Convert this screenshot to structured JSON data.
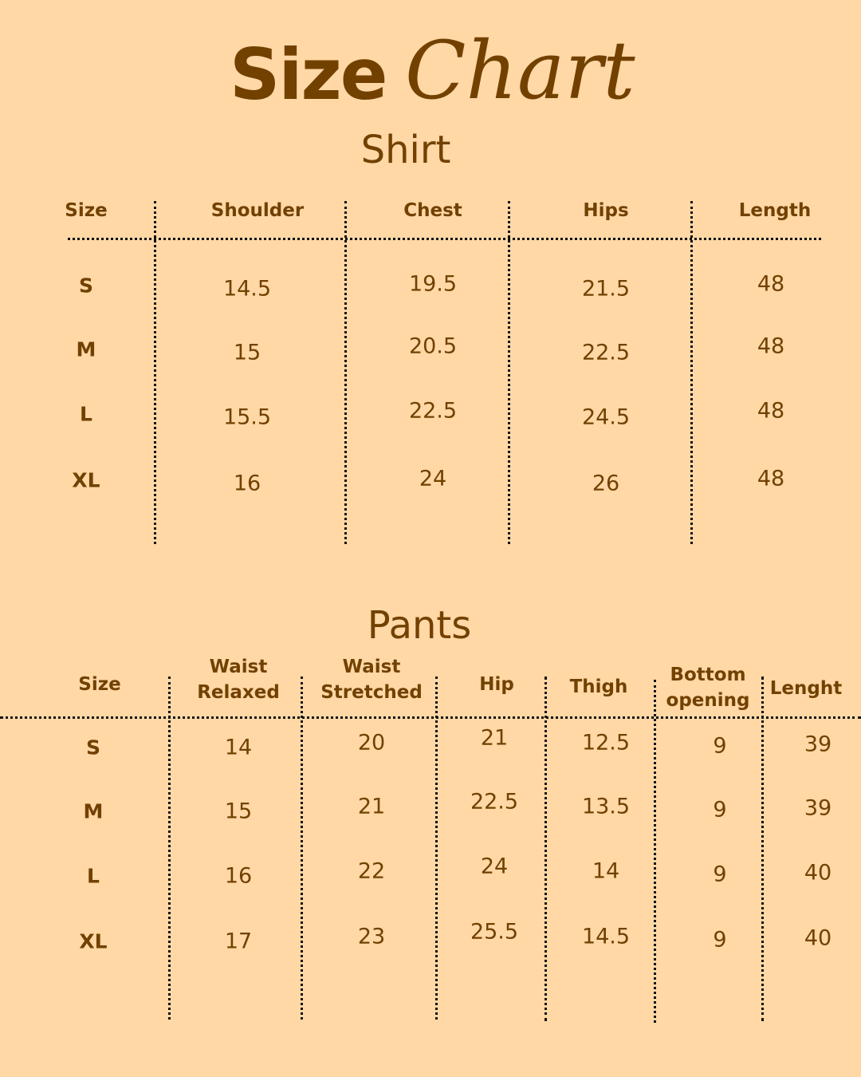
{
  "title": {
    "bold": "Size",
    "script": "Chart"
  },
  "colors": {
    "background": "#FFD8A6",
    "text": "#724100",
    "divider": "#111111"
  },
  "shirt": {
    "title": "Shirt",
    "headers": [
      "Size",
      "Shoulder",
      "Chest",
      "Hips",
      "Length"
    ],
    "rows": [
      [
        "S",
        "14.5",
        "19.5",
        "21.5",
        "48"
      ],
      [
        "M",
        "15",
        "20.5",
        "22.5",
        "48"
      ],
      [
        "L",
        "15.5",
        "22.5",
        "24.5",
        "48"
      ],
      [
        "XL",
        "16",
        "24",
        "26",
        "48"
      ]
    ]
  },
  "pants": {
    "title": "Pants",
    "headers": [
      "Size",
      "Waist\nRelaxed",
      "Waist\nStretched",
      "Hip",
      "Thigh",
      "Bottom\nopening",
      "Lenght"
    ],
    "rows": [
      [
        "S",
        "14",
        "20",
        "21",
        "12.5",
        "9",
        "39"
      ],
      [
        "M",
        "15",
        "21",
        "22.5",
        "13.5",
        "9",
        "39"
      ],
      [
        "L",
        "16",
        "22",
        "24",
        "14",
        "9",
        "40"
      ],
      [
        "XL",
        "17",
        "23",
        "25.5",
        "14.5",
        "9",
        "40"
      ]
    ]
  }
}
